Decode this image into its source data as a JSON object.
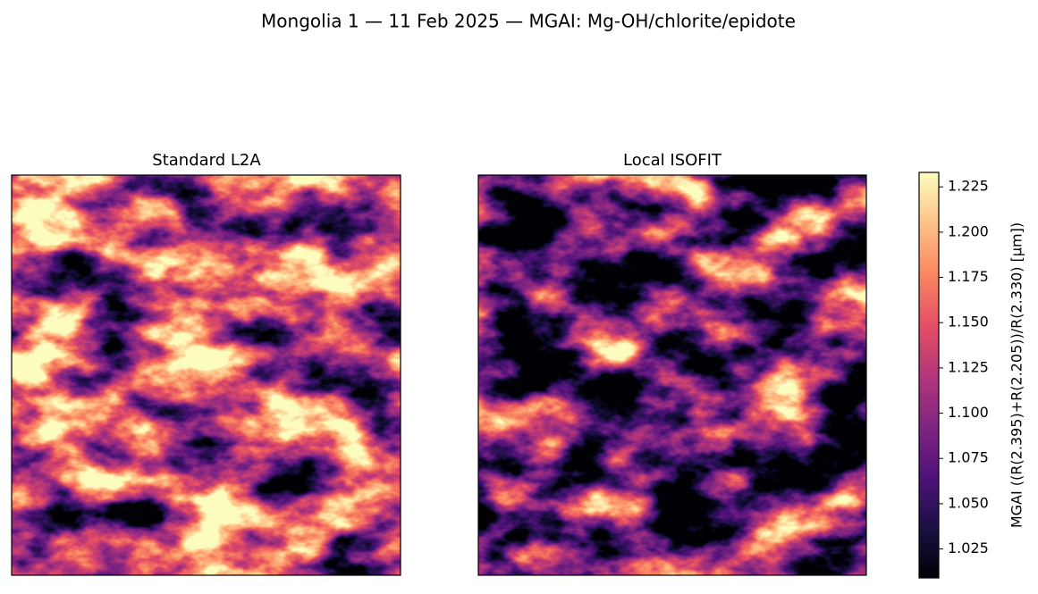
{
  "chart_data": {
    "type": "heatmap",
    "title": "Mongolia 1 — 11 Feb 2025 — MGAI: Mg-OH/chlorite/epidote",
    "subplot_titles": [
      "Standard L2A",
      "Local ISOFIT"
    ],
    "colormap": "magma",
    "colorbar": {
      "label": "MGAI  ((R(2.395)+R(2.205))/R(2.330)  [μm])",
      "lim": [
        1.009,
        1.233
      ],
      "ticks": [
        1.025,
        {
          "value": 1.05,
          "label": "1.050"
        },
        1.075,
        {
          "value": 1.1,
          "label": "1.100"
        },
        1.125,
        {
          "value": 1.15,
          "label": "1.150"
        },
        1.175,
        {
          "value": 1.2,
          "label": "1.200"
        },
        1.225
      ]
    }
  }
}
